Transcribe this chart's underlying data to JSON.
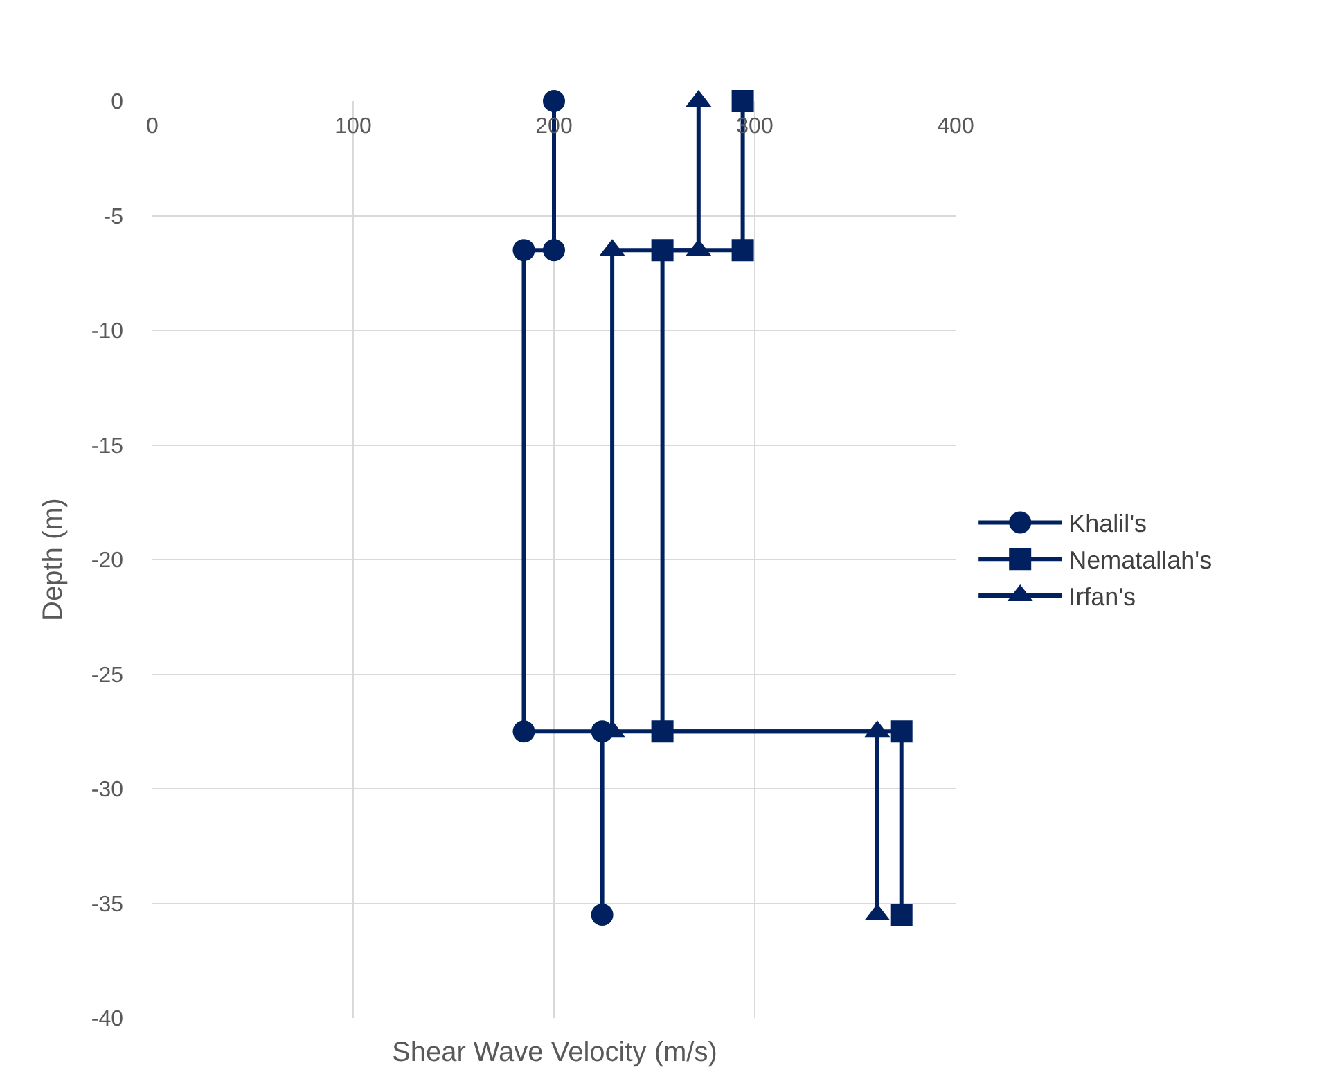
{
  "chart_data": {
    "type": "line",
    "xlabel": "Shear Wave Velocity (m/s)",
    "ylabel": "Depth (m)",
    "xlim": [
      0,
      400
    ],
    "xticks": [
      0,
      100,
      200,
      300,
      400
    ],
    "ylim": [
      -40,
      0
    ],
    "yticks": [
      -40,
      -35,
      -30,
      -25,
      -20,
      -15,
      -10,
      -5,
      0
    ],
    "grid": true,
    "legend": "right",
    "line_style": "solid",
    "series": [
      {
        "name": "Khalil's",
        "color": "#002060",
        "marker": "circle",
        "x": [
          200,
          200,
          185,
          185,
          224,
          224
        ],
        "values": [
          0,
          -6.5,
          -6.5,
          -27.5,
          -27.5,
          -35.5
        ]
      },
      {
        "name": "Nematallah's",
        "color": "#002060",
        "marker": "square",
        "x": [
          294,
          294,
          254,
          254,
          373,
          373
        ],
        "values": [
          0,
          -6.5,
          -6.5,
          -27.5,
          -27.5,
          -35.5
        ]
      },
      {
        "name": "Irfan's",
        "color": "#002060",
        "marker": "triangle",
        "x": [
          272,
          272,
          229,
          229,
          361,
          361
        ],
        "values": [
          0,
          -6.5,
          -6.5,
          -27.5,
          -27.5,
          -35.5
        ]
      }
    ]
  }
}
